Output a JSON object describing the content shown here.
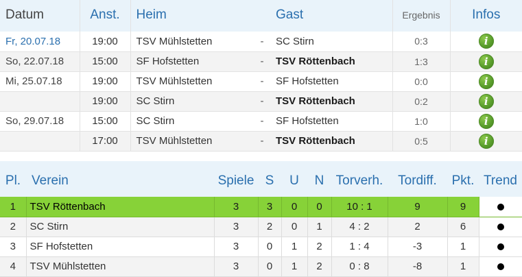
{
  "matches": {
    "headers": {
      "date": "Datum",
      "time": "Anst.",
      "home": "Heim",
      "away": "Gast",
      "result": "Ergebnis",
      "info": "Infos"
    },
    "rows": [
      {
        "date": "Fr, 20.07.18",
        "time": "19:00",
        "home": "TSV Mühlstetten",
        "sep": "-",
        "away": "SC Stirn",
        "away_bold": false,
        "result": "0:3"
      },
      {
        "date": "So, 22.07.18",
        "time": "15:00",
        "home": "SF Hofstetten",
        "sep": "-",
        "away": "TSV Röttenbach",
        "away_bold": true,
        "result": "1:3"
      },
      {
        "date": "Mi, 25.07.18",
        "time": "19:00",
        "home": "TSV Mühlstetten",
        "sep": "-",
        "away": "SF Hofstetten",
        "away_bold": false,
        "result": "0:0"
      },
      {
        "date": "",
        "time": "19:00",
        "home": "SC Stirn",
        "sep": "-",
        "away": "TSV Röttenbach",
        "away_bold": true,
        "result": "0:2"
      },
      {
        "date": "So, 29.07.18",
        "time": "15:00",
        "home": "SC Stirn",
        "sep": "-",
        "away": "SF Hofstetten",
        "away_bold": false,
        "result": "1:0"
      },
      {
        "date": "",
        "time": "17:00",
        "home": "TSV Mühlstetten",
        "sep": "-",
        "away": "TSV Röttenbach",
        "away_bold": true,
        "result": "0:5"
      }
    ],
    "info_icon": "info-icon",
    "info_glyph": "i"
  },
  "standings": {
    "headers": {
      "place": "Pl.",
      "club": "Verein",
      "games": "Spiele",
      "wins": "S",
      "draws": "U",
      "losses": "N",
      "goals": "Torverh.",
      "diff": "Tordiff.",
      "points": "Pkt.",
      "trend": "Trend"
    },
    "rows": [
      {
        "place": "1",
        "club": "TSV Röttenbach",
        "games": "3",
        "wins": "3",
        "draws": "0",
        "losses": "0",
        "goals": "10 : 1",
        "diff": "9",
        "points": "9",
        "trend_icon": "trend-dot-icon"
      },
      {
        "place": "2",
        "club": "SC Stirn",
        "games": "3",
        "wins": "2",
        "draws": "0",
        "losses": "1",
        "goals": "4 : 2",
        "diff": "2",
        "points": "6",
        "trend_icon": "trend-dot-icon"
      },
      {
        "place": "3",
        "club": "SF Hofstetten",
        "games": "3",
        "wins": "0",
        "draws": "1",
        "losses": "2",
        "goals": "1 : 4",
        "diff": "-3",
        "points": "1",
        "trend_icon": "trend-dot-icon"
      },
      {
        "place": "4",
        "club": "TSV Mühlstetten",
        "games": "3",
        "wins": "0",
        "draws": "1",
        "losses": "2",
        "goals": "0 : 8",
        "diff": "-8",
        "points": "1",
        "trend_icon": "trend-dot-icon"
      }
    ]
  },
  "colors": {
    "header_bg": "#e9f3fa",
    "header_text": "#2a6fae",
    "leader_row": "#87d238",
    "info_green": "#5a9e2c"
  }
}
